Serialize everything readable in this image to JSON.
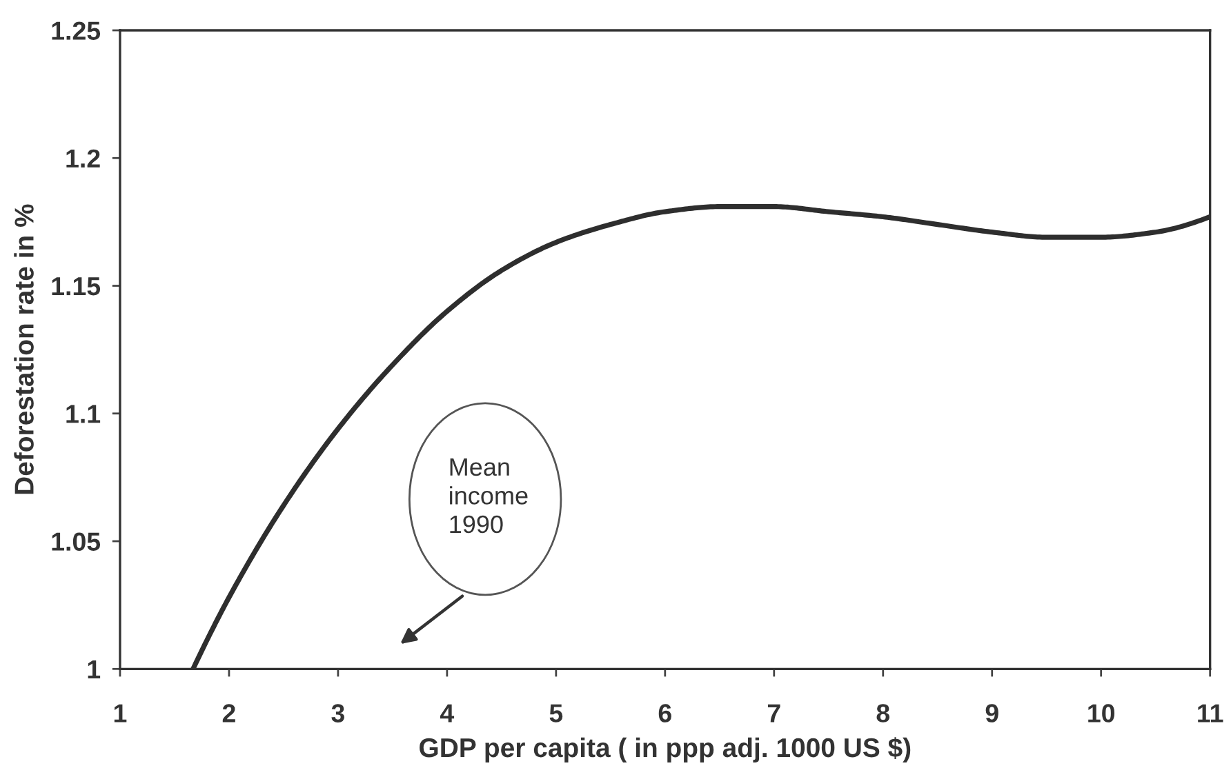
{
  "chart_data": {
    "type": "line",
    "xlabel": "GDP per capita ( in ppp adj. 1000 US $)",
    "ylabel": "Deforestation rate in %",
    "x": [
      1.67,
      2.0,
      2.5,
      3.0,
      3.5,
      4.0,
      4.5,
      5.0,
      5.5,
      6.0,
      6.5,
      7.0,
      7.5,
      8.0,
      8.5,
      9.0,
      9.5,
      10.0,
      10.5,
      11.0
    ],
    "values": [
      1.0,
      1.028,
      1.064,
      1.094,
      1.119,
      1.14,
      1.156,
      1.167,
      1.174,
      1.179,
      1.181,
      1.181,
      1.179,
      1.177,
      1.174,
      1.171,
      1.169,
      1.169,
      1.171,
      1.177
    ],
    "color": "#2e2e2e",
    "line_style": "solid",
    "xlim": [
      1,
      11
    ],
    "ylim": [
      1,
      1.25
    ],
    "xticks": [
      1,
      2,
      3,
      4,
      5,
      6,
      7,
      8,
      9,
      10,
      11
    ],
    "yticks": [
      1,
      1.05,
      1.1,
      1.15,
      1.2,
      1.25
    ],
    "annotations": [
      "Mean\nincome\n1990"
    ]
  }
}
